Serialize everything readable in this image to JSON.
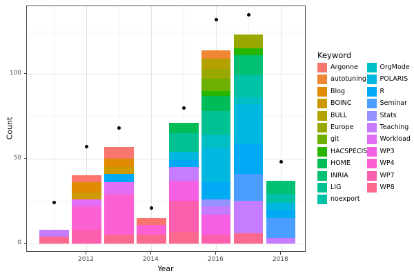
{
  "chart_data": {
    "type": "bar",
    "stacked": true,
    "title": "",
    "xlabel": "Year",
    "ylabel": "Count",
    "legend_title": "Keyword",
    "legend_position": "right",
    "grid": true,
    "x_ticks": [
      2012,
      2014,
      2016,
      2018
    ],
    "x_minor": [
      2011,
      2013,
      2015,
      2017
    ],
    "y_ticks": [
      0,
      50,
      100
    ],
    "y_minor": [
      25,
      75,
      125
    ],
    "ylim": [
      -5.4,
      140
    ],
    "xlim": [
      2010.2,
      2018.8
    ],
    "keywords": [
      {
        "name": "Argonne",
        "color": "#F8766D"
      },
      {
        "name": "autotuning",
        "color": "#EE8633"
      },
      {
        "name": "Blog",
        "color": "#E08B00"
      },
      {
        "name": "BOINC",
        "color": "#CC9A00"
      },
      {
        "name": "BULL",
        "color": "#B3A100"
      },
      {
        "name": "Europe",
        "color": "#99A800"
      },
      {
        "name": "git",
        "color": "#6DB000"
      },
      {
        "name": "HACSPECIS",
        "color": "#27B600"
      },
      {
        "name": "HOME",
        "color": "#00BC58"
      },
      {
        "name": "INRIA",
        "color": "#00C074"
      },
      {
        "name": "LIG",
        "color": "#00C192"
      },
      {
        "name": "noexport",
        "color": "#00C1A8"
      },
      {
        "name": "OrgMode",
        "color": "#00BFC4"
      },
      {
        "name": "POLARIS",
        "color": "#00B8DF"
      },
      {
        "name": "R",
        "color": "#00A9F4"
      },
      {
        "name": "Seminar",
        "color": "#4B9DFF"
      },
      {
        "name": "Stats",
        "color": "#9591FF"
      },
      {
        "name": "Teaching",
        "color": "#C57CFF"
      },
      {
        "name": "Workload",
        "color": "#E36EF6"
      },
      {
        "name": "WP3",
        "color": "#F45FE3"
      },
      {
        "name": "WP4",
        "color": "#FB61D2"
      },
      {
        "name": "WP7",
        "color": "#FD5FAF"
      },
      {
        "name": "WP8",
        "color": "#FB6A8E"
      }
    ],
    "bars": [
      {
        "year": 2011,
        "total": 8,
        "segments": [
          {
            "keyword": "Teaching",
            "value": 4
          },
          {
            "keyword": "WP8",
            "value": 4
          }
        ]
      },
      {
        "year": 2012,
        "total": 40,
        "segments": [
          {
            "keyword": "Argonne",
            "value": 4
          },
          {
            "keyword": "Blog",
            "value": 6
          },
          {
            "keyword": "BOINC",
            "value": 4
          },
          {
            "keyword": "Workload",
            "value": 4
          },
          {
            "keyword": "WP4",
            "value": 14
          },
          {
            "keyword": "WP7",
            "value": 8
          }
        ]
      },
      {
        "year": 2013,
        "total": 57,
        "segments": [
          {
            "keyword": "Argonne",
            "value": 7
          },
          {
            "keyword": "Blog",
            "value": 5
          },
          {
            "keyword": "BOINC",
            "value": 4
          },
          {
            "keyword": "R",
            "value": 5
          },
          {
            "keyword": "Workload",
            "value": 7
          },
          {
            "keyword": "WP4",
            "value": 24
          },
          {
            "keyword": "WP8",
            "value": 5
          }
        ]
      },
      {
        "year": 2014,
        "total": 15,
        "segments": [
          {
            "keyword": "Argonne",
            "value": 4
          },
          {
            "keyword": "WP4",
            "value": 6
          },
          {
            "keyword": "WP8",
            "value": 5
          }
        ]
      },
      {
        "year": 2015,
        "total": 71,
        "segments": [
          {
            "keyword": "HOME",
            "value": 6
          },
          {
            "keyword": "LIG",
            "value": 11
          },
          {
            "keyword": "POLARIS",
            "value": 5
          },
          {
            "keyword": "R",
            "value": 4
          },
          {
            "keyword": "Teaching",
            "value": 8
          },
          {
            "keyword": "WP3",
            "value": 12
          },
          {
            "keyword": "WP7",
            "value": 18
          },
          {
            "keyword": "WP8",
            "value": 7
          }
        ]
      },
      {
        "year": 2016,
        "total": 114,
        "segments": [
          {
            "keyword": "autotuning",
            "value": 5
          },
          {
            "keyword": "BULL",
            "value": 6
          },
          {
            "keyword": "Europe",
            "value": 6
          },
          {
            "keyword": "git",
            "value": 7
          },
          {
            "keyword": "HACSPECIS",
            "value": 3
          },
          {
            "keyword": "HOME",
            "value": 9
          },
          {
            "keyword": "LIG",
            "value": 14
          },
          {
            "keyword": "OrgMode",
            "value": 8
          },
          {
            "keyword": "POLARIS",
            "value": 20
          },
          {
            "keyword": "R",
            "value": 10
          },
          {
            "keyword": "Stats",
            "value": 4
          },
          {
            "keyword": "Teaching",
            "value": 5
          },
          {
            "keyword": "WP3",
            "value": 12
          },
          {
            "keyword": "WP7",
            "value": 5
          }
        ]
      },
      {
        "year": 2017,
        "total": 123,
        "segments": [
          {
            "keyword": "Europe",
            "value": 8
          },
          {
            "keyword": "HACSPECIS",
            "value": 4
          },
          {
            "keyword": "INRIA",
            "value": 12
          },
          {
            "keyword": "noexport",
            "value": 13
          },
          {
            "keyword": "OrgMode",
            "value": 4
          },
          {
            "keyword": "POLARIS",
            "value": 23
          },
          {
            "keyword": "R",
            "value": 18
          },
          {
            "keyword": "Seminar",
            "value": 16
          },
          {
            "keyword": "Teaching",
            "value": 19
          },
          {
            "keyword": "WP8",
            "value": 6
          }
        ]
      },
      {
        "year": 2018,
        "total": 37,
        "segments": [
          {
            "keyword": "INRIA",
            "value": 8
          },
          {
            "keyword": "noexport",
            "value": 5
          },
          {
            "keyword": "POLARIS",
            "value": 4
          },
          {
            "keyword": "R",
            "value": 5
          },
          {
            "keyword": "Seminar",
            "value": 12
          },
          {
            "keyword": "Teaching",
            "value": 3
          }
        ]
      }
    ],
    "points": [
      {
        "year": 2011,
        "value": 24
      },
      {
        "year": 2012,
        "value": 57
      },
      {
        "year": 2013,
        "value": 68
      },
      {
        "year": 2014,
        "value": 21
      },
      {
        "year": 2015,
        "value": 80
      },
      {
        "year": 2016,
        "value": 132
      },
      {
        "year": 2017,
        "value": 135
      },
      {
        "year": 2018,
        "value": 48
      }
    ]
  }
}
